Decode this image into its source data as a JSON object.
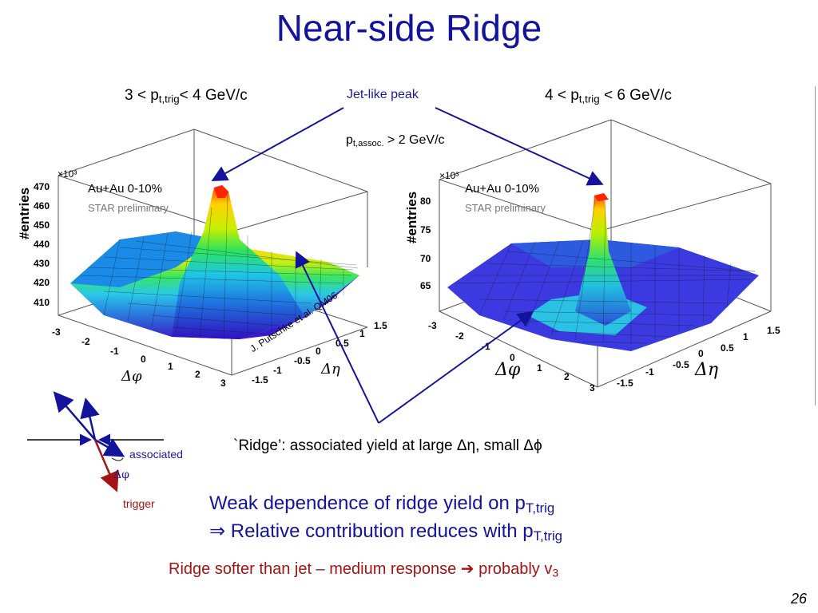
{
  "slide": {
    "title": "Near-side Ridge",
    "page_number": "26"
  },
  "panels": {
    "left_heading_pre": "3 < p",
    "left_heading_sub": "t,trig",
    "left_heading_post": "< 4 GeV/c",
    "right_heading_pre": "4 < p",
    "right_heading_sub": "t,trig",
    "right_heading_post": " < 6 GeV/c",
    "jet_label": "Jet-like peak",
    "assoc_pre": "p",
    "assoc_sub": "t,assoc.",
    "assoc_post": " > 2 GeV/c"
  },
  "left_plot": {
    "ylabel": "#entries",
    "exponent": "×10³",
    "yticks": [
      "470",
      "460",
      "450",
      "440",
      "430",
      "420",
      "410"
    ],
    "xticks": [
      "-3",
      "-2",
      "-1",
      "0",
      "1",
      "2",
      "3"
    ],
    "eticks": [
      "-1.5",
      "-1",
      "-0.5",
      "0",
      "0.5",
      "1",
      "1.5"
    ],
    "xlabel": "Δφ",
    "elabel": "Δη",
    "legend": "Au+Au 0-10%",
    "prelim": "STAR preliminary",
    "credit": "J. Putschke et al. QM06"
  },
  "right_plot": {
    "ylabel": "#entries",
    "exponent": "×10³",
    "yticks": [
      "80",
      "75",
      "70",
      "65"
    ],
    "xticks": [
      "-3",
      "-2",
      "-1",
      "0",
      "1",
      "2",
      "3"
    ],
    "eticks": [
      "-1.5",
      "-1",
      "-0.5",
      "0",
      "0.5",
      "1",
      "1.5"
    ],
    "xlabel": "Δφ",
    "elabel": "Δη",
    "legend": "Au+Au 0-10%",
    "prelim": "STAR preliminary"
  },
  "diagram": {
    "associated": "associated",
    "trigger": "trigger",
    "dphi": "Δφ"
  },
  "text": {
    "ridge_def": "`Ridge’: associated yield at large Δη, small Δϕ",
    "weak_pre": "Weak dependence of ridge yield on p",
    "weak_sub": "T,trig",
    "rel_pre": "⇒ Relative contribution reduces with p",
    "rel_sub": "T,trig",
    "softer_pre": "Ridge softer than jet – medium response ",
    "softer_arrow": "➔",
    "softer_post": " probably v",
    "softer_sub": "3"
  },
  "colors": {
    "title": "#13139b",
    "annotation_arrow": "#13139b",
    "red_text": "#a31313"
  }
}
